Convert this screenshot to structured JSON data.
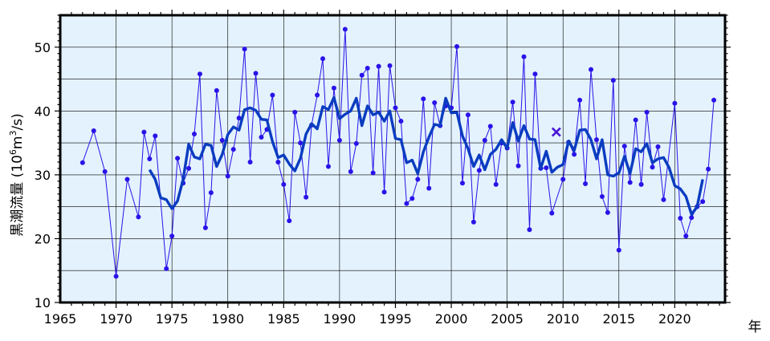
{
  "chart_data": {
    "type": "line",
    "title": "",
    "xlabel": "年",
    "ylabel": {
      "prefix": "黒潮流量 (10",
      "sup1": "6",
      "mid": "m",
      "sup2": "3",
      "suffix": "/s)"
    },
    "xlim": [
      1965,
      2024.5
    ],
    "ylim": [
      10,
      55
    ],
    "x_ticks": [
      1965,
      1970,
      1975,
      1980,
      1985,
      1990,
      1995,
      2000,
      2005,
      2010,
      2015,
      2020
    ],
    "y_ticks": [
      10,
      20,
      30,
      40,
      50
    ],
    "grid": true,
    "colors": {
      "background": "#e3f2fd",
      "raw": "#2a12e8",
      "smooth": "#0a3cc0",
      "marker_x": "#4a18d8"
    },
    "series": [
      {
        "style": "thin-line-with-dots",
        "x": [
          1967.0,
          1968.0,
          1969.0,
          1970.0,
          1971.0,
          1972.0,
          1972.5,
          1973.0,
          1973.5,
          1974.5,
          1975.0,
          1975.5,
          1976.0,
          1976.5,
          1977.0,
          1977.5,
          1978.0,
          1978.5,
          1979.0,
          1979.5,
          1980.0,
          1980.5,
          1981.0,
          1981.5,
          1982.0,
          1982.5,
          1983.0,
          1983.5,
          1984.0,
          1984.5,
          1985.0,
          1985.5,
          1986.0,
          1986.5,
          1987.0,
          1987.5,
          1988.0,
          1988.5,
          1989.0,
          1989.5,
          1990.0,
          1990.5,
          1991.0,
          1991.5,
          1992.0,
          1992.5,
          1993.0,
          1993.5,
          1994.0,
          1994.5,
          1995.0,
          1995.5,
          1996.0,
          1996.5,
          1997.0,
          1997.5,
          1998.0,
          1998.5,
          1999.0,
          1999.5,
          2000.0,
          2000.5,
          2001.0,
          2001.5,
          2002.0,
          2002.5,
          2003.0,
          2003.5,
          2004.0,
          2004.5,
          2005.0,
          2005.5,
          2006.0,
          2006.5,
          2007.0,
          2007.5,
          2008.0,
          2008.5,
          2009.0,
          2010.0,
          2010.5,
          2011.0,
          2011.5,
          2012.0,
          2012.5,
          2013.0,
          2013.5,
          2014.0,
          2014.5,
          2015.0,
          2015.5,
          2016.0,
          2016.5,
          2017.0,
          2017.5,
          2018.0,
          2018.5,
          2019.0,
          2020.0,
          2020.5,
          2021.0,
          2021.5,
          2022.0,
          2022.5,
          2023.0,
          2023.5
        ],
        "values": [
          31.9,
          36.9,
          30.5,
          14.1,
          29.3,
          23.4,
          36.7,
          32.5,
          36.1,
          15.3,
          20.4,
          32.6,
          28.7,
          31.0,
          36.4,
          45.8,
          21.7,
          27.2,
          43.2,
          35.4,
          29.8,
          34.0,
          38.9,
          49.7,
          32.0,
          45.9,
          35.9,
          37.1,
          42.5,
          32.0,
          28.5,
          22.8,
          39.8,
          35.0,
          26.5,
          37.8,
          42.5,
          48.2,
          31.3,
          43.6,
          35.4,
          52.8,
          30.5,
          34.9,
          45.6,
          46.7,
          30.3,
          47.0,
          27.3,
          47.1,
          40.5,
          38.4,
          25.5,
          26.3,
          29.3,
          41.9,
          27.9,
          41.3,
          37.7,
          40.8,
          40.5,
          50.1,
          28.7,
          39.4,
          22.6,
          30.7,
          35.4,
          37.6,
          28.5,
          35.0,
          34.2,
          41.4,
          31.4,
          48.5,
          21.4,
          45.8,
          31.0,
          31.1,
          24.0,
          29.3,
          35.1,
          33.2,
          41.7,
          28.6,
          46.5,
          35.5,
          26.6,
          24.1,
          44.8,
          18.2,
          34.5,
          28.8,
          38.6,
          28.5,
          39.8,
          31.2,
          34.4,
          26.1,
          41.2,
          23.2,
          20.4,
          23.3,
          25.0,
          25.8,
          30.9,
          41.7
        ]
      },
      {
        "style": "thick-line",
        "x": [
          1973.0,
          1973.5,
          1974.0,
          1974.5,
          1975.0,
          1975.5,
          1976.0,
          1976.5,
          1977.0,
          1977.5,
          1978.0,
          1978.5,
          1979.0,
          1979.5,
          1980.0,
          1980.5,
          1981.0,
          1981.5,
          1982.0,
          1982.5,
          1983.0,
          1983.5,
          1984.0,
          1984.5,
          1985.0,
          1985.5,
          1986.0,
          1986.5,
          1987.0,
          1987.5,
          1988.0,
          1988.5,
          1989.0,
          1989.5,
          1990.0,
          1990.5,
          1991.0,
          1991.5,
          1992.0,
          1992.5,
          1993.0,
          1993.5,
          1994.0,
          1994.5,
          1995.0,
          1995.5,
          1996.0,
          1996.5,
          1997.0,
          1997.5,
          1998.0,
          1998.5,
          1999.0,
          1999.5,
          2000.0,
          2000.5,
          2001.0,
          2001.5,
          2002.0,
          2002.5,
          2003.0,
          2003.5,
          2004.0,
          2004.5,
          2005.0,
          2005.5,
          2006.0,
          2006.5,
          2007.0,
          2007.5,
          2008.0,
          2008.5,
          2009.0,
          2009.5,
          2010.0,
          2010.5,
          2011.0,
          2011.5,
          2012.0,
          2012.5,
          2013.0,
          2013.5,
          2014.0,
          2014.5,
          2015.0,
          2015.5,
          2016.0,
          2016.5,
          2017.0,
          2017.5,
          2018.0,
          2018.5,
          2019.0,
          2019.5,
          2020.0,
          2020.5,
          2021.0,
          2021.5,
          2022.0,
          2022.5
        ],
        "values": [
          30.8,
          29.3,
          26.4,
          26.1,
          24.7,
          25.9,
          29.3,
          34.8,
          32.8,
          32.5,
          34.8,
          34.6,
          31.3,
          33.2,
          36.3,
          37.5,
          37.0,
          40.2,
          40.5,
          40.1,
          38.7,
          38.6,
          35.2,
          32.7,
          33.1,
          31.7,
          30.6,
          32.6,
          36.4,
          38.0,
          37.2,
          40.7,
          40.2,
          42.1,
          38.8,
          39.5,
          40.0,
          42.0,
          37.7,
          40.8,
          39.4,
          39.8,
          38.4,
          40.0,
          35.7,
          35.5,
          31.9,
          32.3,
          30.2,
          33.6,
          35.9,
          37.9,
          37.7,
          42.0,
          39.7,
          39.8,
          36.1,
          34.1,
          31.3,
          33.1,
          30.8,
          33.2,
          34.0,
          35.5,
          34.2,
          38.2,
          35.3,
          37.7,
          35.6,
          35.5,
          31.0,
          33.7,
          30.4,
          31.2,
          31.6,
          35.3,
          33.8,
          37.0,
          37.1,
          35.5,
          32.5,
          35.5,
          30.0,
          29.8,
          30.3,
          32.9,
          30.2,
          34.1,
          33.6,
          34.9,
          31.9,
          32.5,
          32.7,
          31.1,
          28.3,
          27.8,
          26.6,
          23.8,
          25.0,
          29.3
        ]
      }
    ],
    "special_marker": {
      "symbol": "x",
      "x": 2009.4,
      "value": 36.7
    }
  }
}
